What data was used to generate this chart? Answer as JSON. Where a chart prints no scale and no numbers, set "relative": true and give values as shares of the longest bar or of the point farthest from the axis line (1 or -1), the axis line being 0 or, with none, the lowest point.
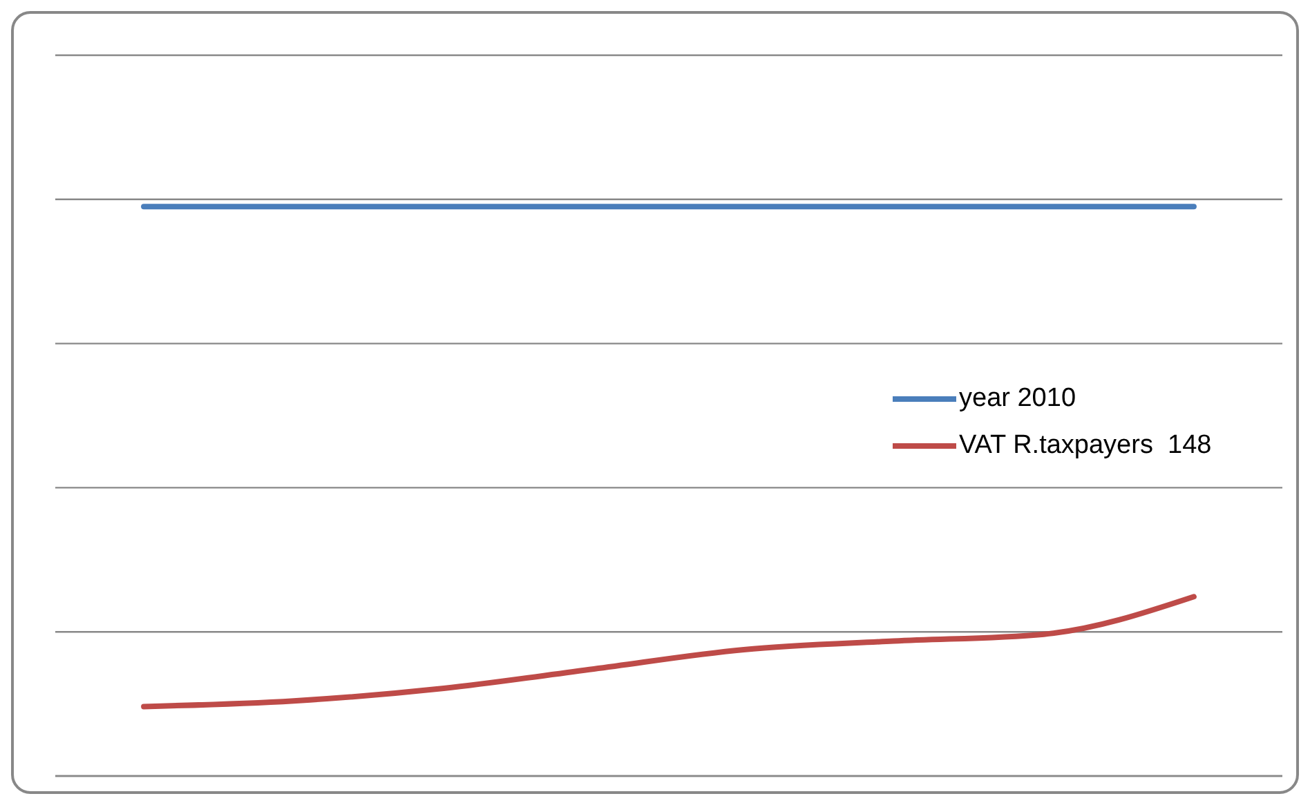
{
  "chart_data": {
    "type": "line",
    "relative": true,
    "categories": [
      null,
      null,
      null,
      null,
      null,
      null,
      null,
      null
    ],
    "series": [
      {
        "name": "year 2010",
        "color": "#4a7ebb",
        "values": [
          1,
          1,
          1,
          1,
          1,
          1,
          1,
          1
        ]
      },
      {
        "name": "VAT R.taxpayers  148",
        "color": "#be4b48",
        "values": [
          0.122,
          0.132,
          0.154,
          0.188,
          0.222,
          0.237,
          0.249,
          0.315
        ]
      }
    ],
    "grid": "y",
    "legend": "right",
    "tick_labels": false,
    "marker": "none",
    "line_style": "solid"
  }
}
